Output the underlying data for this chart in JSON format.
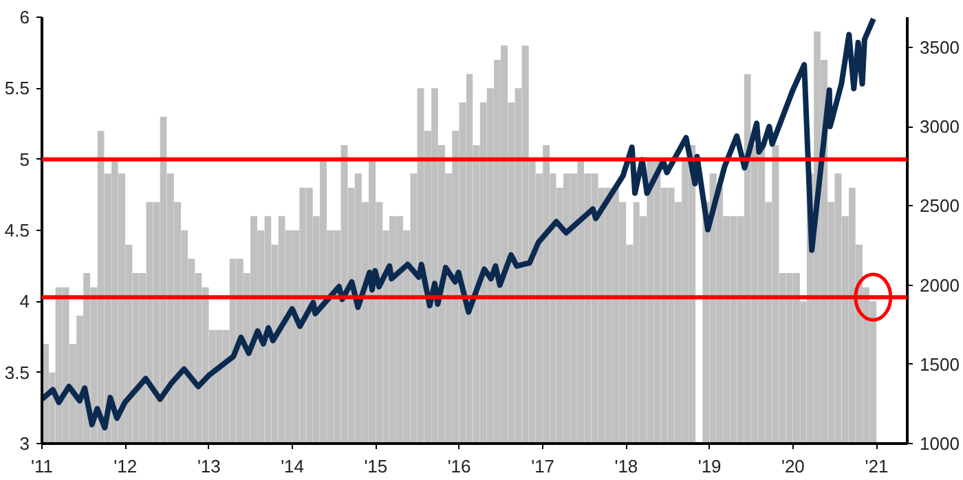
{
  "chart_data": {
    "type": "bar",
    "xlim": [
      "2011-01-01",
      "2021-05-15"
    ],
    "ylim": [
      3,
      6
    ],
    "y2lim": [
      1000,
      3690
    ],
    "xticks": [
      {
        "value": "2011",
        "label": "'11"
      },
      {
        "value": "2012",
        "label": "'12"
      },
      {
        "value": "2013",
        "label": "'13"
      },
      {
        "value": "2014",
        "label": "'14"
      },
      {
        "value": "2015",
        "label": "'15"
      },
      {
        "value": "2016",
        "label": "'16"
      },
      {
        "value": "2017",
        "label": "'17"
      },
      {
        "value": "2018",
        "label": "'18"
      },
      {
        "value": "2019",
        "label": "'19"
      },
      {
        "value": "2020",
        "label": "'20"
      },
      {
        "value": "2021",
        "label": "'21"
      }
    ],
    "yticks": [
      3,
      3.5,
      4,
      4.5,
      5,
      5.5,
      6
    ],
    "y2ticks": [
      1000,
      1500,
      2000,
      2500,
      3000,
      3500
    ],
    "grid": false,
    "ref_lines": [
      {
        "axis": "y",
        "value": 5,
        "color": "#ff0000"
      },
      {
        "axis": "y",
        "value": 4.03,
        "color": "#ff0000"
      }
    ],
    "series": [
      {
        "color": "#c0c0c0",
        "x": [
          "2011-01",
          "2011-02",
          "2011-03",
          "2011-04",
          "2011-05",
          "2011-06",
          "2011-07",
          "2011-08",
          "2011-09",
          "2011-10",
          "2011-11",
          "2011-12",
          "2012-01",
          "2012-02",
          "2012-03",
          "2012-04",
          "2012-05",
          "2012-06",
          "2012-07",
          "2012-08",
          "2012-09",
          "2012-10",
          "2012-11",
          "2012-12",
          "2013-01",
          "2013-02",
          "2013-03",
          "2013-04",
          "2013-05",
          "2013-06",
          "2013-07",
          "2013-08",
          "2013-09",
          "2013-10",
          "2013-11",
          "2013-12",
          "2014-01",
          "2014-02",
          "2014-03",
          "2014-04",
          "2014-05",
          "2014-06",
          "2014-07",
          "2014-08",
          "2014-09",
          "2014-10",
          "2014-11",
          "2014-12",
          "2015-01",
          "2015-02",
          "2015-03",
          "2015-04",
          "2015-05",
          "2015-06",
          "2015-07",
          "2015-08",
          "2015-09",
          "2015-10",
          "2015-11",
          "2015-12",
          "2016-01",
          "2016-02",
          "2016-03",
          "2016-04",
          "2016-05",
          "2016-06",
          "2016-07",
          "2016-08",
          "2016-09",
          "2016-10",
          "2016-11",
          "2016-12",
          "2017-01",
          "2017-02",
          "2017-03",
          "2017-04",
          "2017-05",
          "2017-06",
          "2017-07",
          "2017-08",
          "2017-09",
          "2017-10",
          "2017-11",
          "2017-12",
          "2018-01",
          "2018-02",
          "2018-03",
          "2018-04",
          "2018-05",
          "2018-06",
          "2018-07",
          "2018-08",
          "2018-09",
          "2018-10",
          "2018-11",
          "2018-12",
          "2019-01",
          "2019-02",
          "2019-03",
          "2019-04",
          "2019-05",
          "2019-06",
          "2019-07",
          "2019-08",
          "2019-09",
          "2019-10",
          "2019-11",
          "2019-12",
          "2020-01",
          "2020-02",
          "2020-03",
          "2020-04",
          "2020-05",
          "2020-06",
          "2020-07",
          "2020-08",
          "2020-09",
          "2020-10",
          "2020-11",
          "2020-12"
        ],
        "values": [
          3.7,
          3.5,
          4.1,
          4.1,
          3.7,
          3.9,
          4.2,
          4.1,
          5.2,
          4.9,
          5.0,
          4.9,
          4.4,
          4.2,
          4.2,
          4.7,
          4.7,
          5.3,
          4.9,
          4.7,
          4.5,
          4.3,
          4.2,
          4.1,
          3.8,
          3.8,
          3.8,
          4.3,
          4.3,
          4.2,
          4.6,
          4.5,
          4.6,
          4.4,
          4.6,
          4.5,
          4.5,
          4.8,
          4.8,
          4.6,
          5.0,
          4.5,
          4.5,
          5.1,
          4.8,
          4.9,
          4.7,
          5.0,
          4.7,
          4.5,
          4.6,
          4.6,
          4.5,
          4.9,
          5.5,
          5.2,
          5.5,
          5.1,
          4.9,
          5.2,
          5.4,
          5.6,
          5.1,
          5.4,
          5.5,
          5.7,
          5.8,
          5.4,
          5.5,
          5.8,
          5.0,
          4.9,
          5.1,
          4.9,
          4.8,
          4.9,
          4.9,
          5.0,
          4.9,
          4.9,
          4.8,
          4.8,
          4.8,
          4.7,
          4.4,
          4.7,
          4.6,
          5.0,
          5.0,
          4.8,
          4.8,
          4.7,
          5.0,
          5.1,
          null,
          4.7,
          4.9,
          4.8,
          4.6,
          4.6,
          4.6,
          5.6,
          5.1,
          5.1,
          4.7,
          5.1,
          4.2,
          4.2,
          4.2,
          4.0,
          4.9,
          5.9,
          5.7,
          4.7,
          4.9,
          4.6,
          4.8,
          4.4,
          4.1,
          4.0
        ]
      },
      {
        "type": "line",
        "axis": "y2",
        "color": "#0c2a50",
        "x": [
          "2011-01-01",
          "2011-02-18",
          "2011-03-16",
          "2011-04-29",
          "2011-06-15",
          "2011-07-07",
          "2011-08-08",
          "2011-08-31",
          "2011-10-03",
          "2011-10-27",
          "2011-11-25",
          "2011-12-30",
          "2012-03-30",
          "2012-06-01",
          "2012-07-20",
          "2012-09-14",
          "2012-11-15",
          "2012-12-31",
          "2013-04-18",
          "2013-05-21",
          "2013-06-24",
          "2013-08-02",
          "2013-08-27",
          "2013-09-18",
          "2013-10-08",
          "2013-12-31",
          "2014-02-03",
          "2014-04-02",
          "2014-04-11",
          "2014-07-24",
          "2014-08-07",
          "2014-09-18",
          "2014-10-15",
          "2014-12-05",
          "2014-12-16",
          "2014-12-29",
          "2015-01-15",
          "2015-03-02",
          "2015-03-11",
          "2015-05-21",
          "2015-07-08",
          "2015-07-20",
          "2015-08-25",
          "2015-09-16",
          "2015-09-29",
          "2015-11-03",
          "2015-12-14",
          "2015-12-29",
          "2016-02-11",
          "2016-04-20",
          "2016-05-19",
          "2016-06-08",
          "2016-06-27",
          "2016-08-15",
          "2016-09-09",
          "2016-11-04",
          "2016-12-13",
          "2017-03-01",
          "2017-04-13",
          "2017-08-08",
          "2017-08-21",
          "2017-12-18",
          "2018-01-26",
          "2018-02-08",
          "2018-03-12",
          "2018-04-02",
          "2018-06-12",
          "2018-06-28",
          "2018-09-20",
          "2018-10-29",
          "2018-11-07",
          "2018-12-24",
          "2019-03-08",
          "2019-04-30",
          "2019-06-03",
          "2019-07-26",
          "2019-08-05",
          "2019-08-23",
          "2019-09-19",
          "2019-10-02",
          "2019-12-31",
          "2020-02-19",
          "2020-03-23",
          "2020-06-08",
          "2020-06-11",
          "2020-07-31",
          "2020-09-02",
          "2020-09-23",
          "2020-10-12",
          "2020-10-30",
          "2020-11-09",
          "2020-12-18"
        ],
        "values": [
          1280,
          1340,
          1260,
          1360,
          1270,
          1350,
          1120,
          1220,
          1100,
          1290,
          1160,
          1260,
          1410,
          1280,
          1380,
          1470,
          1360,
          1430,
          1550,
          1670,
          1570,
          1710,
          1630,
          1730,
          1650,
          1850,
          1740,
          1890,
          1820,
          1990,
          1910,
          2020,
          1860,
          2080,
          1970,
          2090,
          1990,
          2120,
          2040,
          2130,
          2050,
          2130,
          1870,
          2010,
          1880,
          2110,
          2020,
          2080,
          1830,
          2100,
          2040,
          2120,
          2000,
          2190,
          2120,
          2140,
          2270,
          2400,
          2330,
          2480,
          2420,
          2690,
          2870,
          2580,
          2790,
          2580,
          2780,
          2710,
          2930,
          2640,
          2810,
          2350,
          2750,
          2940,
          2740,
          3020,
          2840,
          2880,
          3000,
          2890,
          3230,
          3390,
          2220,
          3230,
          3000,
          3270,
          3580,
          3240,
          3530,
          3270,
          3550,
          3680
        ]
      }
    ]
  }
}
